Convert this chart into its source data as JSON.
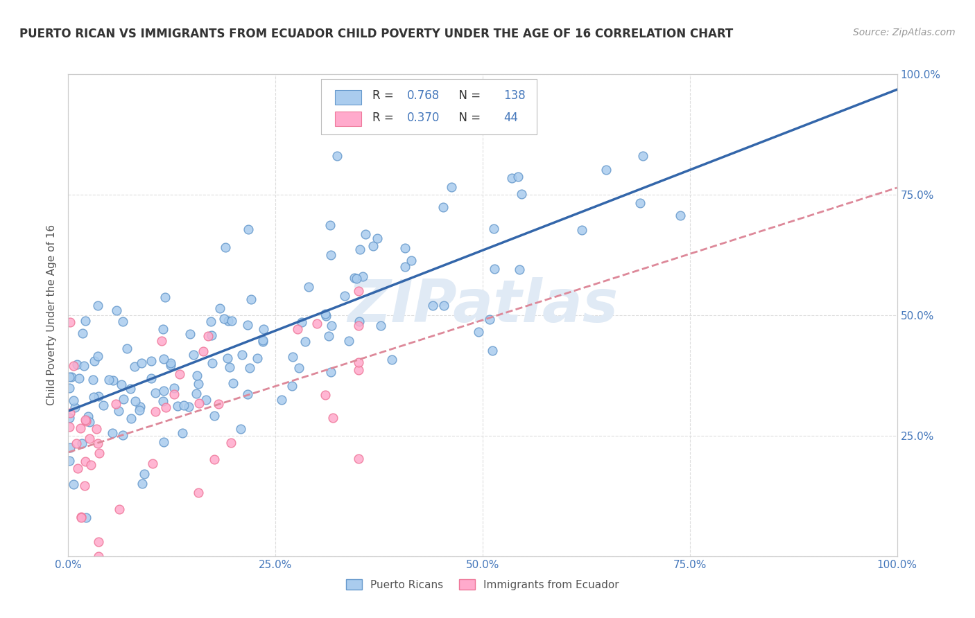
{
  "title": "PUERTO RICAN VS IMMIGRANTS FROM ECUADOR CHILD POVERTY UNDER THE AGE OF 16 CORRELATION CHART",
  "source": "Source: ZipAtlas.com",
  "ylabel": "Child Poverty Under the Age of 16",
  "background_color": "#ffffff",
  "plot_bg_color": "#ffffff",
  "grid_color": "#dddddd",
  "pr_color": "#aaccee",
  "pr_edge_color": "#6699cc",
  "ec_color": "#ffaacc",
  "ec_edge_color": "#ee7799",
  "pr_line_color": "#3366aa",
  "ec_line_color": "#dd8899",
  "R_pr": 0.768,
  "N_pr": 138,
  "R_ec": 0.37,
  "N_ec": 44,
  "tick_color": "#4477bb",
  "legend_color": "#4477bb",
  "title_color": "#333333",
  "title_fontsize": 12,
  "axis_label_color": "#555555",
  "watermark_color": "#e0eaf5",
  "watermark_text": "ZIPatlas"
}
